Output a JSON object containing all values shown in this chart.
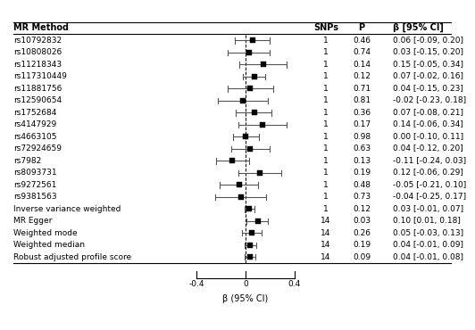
{
  "rows": [
    {
      "label": "rs10792832",
      "snps": "1",
      "p": "0.46",
      "beta": 0.06,
      "ci_lo": -0.09,
      "ci_hi": 0.2
    },
    {
      "label": "rs10808026",
      "snps": "1",
      "p": "0.74",
      "beta": 0.03,
      "ci_lo": -0.15,
      "ci_hi": 0.2
    },
    {
      "label": "rs11218343",
      "snps": "1",
      "p": "0.14",
      "beta": 0.15,
      "ci_lo": -0.05,
      "ci_hi": 0.34
    },
    {
      "label": "rs117310449",
      "snps": "1",
      "p": "0.12",
      "beta": 0.07,
      "ci_lo": -0.02,
      "ci_hi": 0.16
    },
    {
      "label": "rs11881756",
      "snps": "1",
      "p": "0.71",
      "beta": 0.04,
      "ci_lo": -0.15,
      "ci_hi": 0.23
    },
    {
      "label": "rs12590654",
      "snps": "1",
      "p": "0.81",
      "beta": -0.02,
      "ci_lo": -0.23,
      "ci_hi": 0.18
    },
    {
      "label": "rs1752684",
      "snps": "1",
      "p": "0.36",
      "beta": 0.07,
      "ci_lo": -0.08,
      "ci_hi": 0.21
    },
    {
      "label": "rs4147929",
      "snps": "1",
      "p": "0.17",
      "beta": 0.14,
      "ci_lo": -0.06,
      "ci_hi": 0.34
    },
    {
      "label": "rs4663105",
      "snps": "1",
      "p": "0.98",
      "beta": 0.0,
      "ci_lo": -0.1,
      "ci_hi": 0.11
    },
    {
      "label": "rs72924659",
      "snps": "1",
      "p": "0.63",
      "beta": 0.04,
      "ci_lo": -0.12,
      "ci_hi": 0.2
    },
    {
      "label": "rs7982",
      "snps": "1",
      "p": "0.13",
      "beta": -0.11,
      "ci_lo": -0.24,
      "ci_hi": 0.03
    },
    {
      "label": "rs8093731",
      "snps": "1",
      "p": "0.19",
      "beta": 0.12,
      "ci_lo": -0.06,
      "ci_hi": 0.29
    },
    {
      "label": "rs9272561",
      "snps": "1",
      "p": "0.48",
      "beta": -0.05,
      "ci_lo": -0.21,
      "ci_hi": 0.1
    },
    {
      "label": "rs9381563",
      "snps": "1",
      "p": "0.73",
      "beta": -0.04,
      "ci_lo": -0.25,
      "ci_hi": 0.17
    },
    {
      "label": "Inverse variance weighted",
      "snps": "1",
      "p": "0.12",
      "beta": 0.03,
      "ci_lo": -0.01,
      "ci_hi": 0.07
    },
    {
      "label": "MR Egger",
      "snps": "14",
      "p": "0.03",
      "beta": 0.1,
      "ci_lo": 0.01,
      "ci_hi": 0.18
    },
    {
      "label": "Weighted mode",
      "snps": "14",
      "p": "0.26",
      "beta": 0.05,
      "ci_lo": -0.03,
      "ci_hi": 0.13
    },
    {
      "label": "Weighted median",
      "snps": "14",
      "p": "0.19",
      "beta": 0.04,
      "ci_lo": -0.01,
      "ci_hi": 0.09
    },
    {
      "label": "Robust adjusted profile score",
      "snps": "14",
      "p": "0.09",
      "beta": 0.04,
      "ci_lo": -0.01,
      "ci_hi": 0.08
    }
  ],
  "col_headers": [
    "MR Method",
    "SNPs",
    "P",
    "β [95% CI]"
  ],
  "ci_strings": [
    "0.06 [-0.09, 0.20]",
    "0.03 [-0.15, 0.20]",
    "0.15 [-0.05, 0.34]",
    "0.07 [-0.02, 0.16]",
    "0.04 [-0.15, 0.23]",
    "-0.02 [-0.23, 0.18]",
    "0.07 [-0.08, 0.21]",
    "0.14 [-0.06, 0.34]",
    "0.00 [-0.10, 0.11]",
    "0.04 [-0.12, 0.20]",
    "-0.11 [-0.24, 0.03]",
    "0.12 [-0.06, 0.29]",
    "-0.05 [-0.21, 0.10]",
    "-0.04 [-0.25, 0.17]",
    "0.03 [-0.01, 0.07]",
    "0.10 [0.01, 0.18]",
    "0.05 [-0.03, 0.13]",
    "0.04 [-0.01, 0.09]",
    "0.04 [-0.01, 0.08]"
  ],
  "xlabel": "β (95% CI)",
  "x_ticks": [
    -0.4,
    0.0,
    0.4
  ],
  "x_tick_labels": [
    "-0.4",
    "0",
    "0.4"
  ],
  "plot_xlim": [
    -0.55,
    0.55
  ],
  "fontsize": 6.5,
  "header_fontsize": 7.0,
  "marker_size": 4,
  "cap_size": 0.08,
  "linewidth": 0.8,
  "bg_color": "#ffffff",
  "fg_color": "#000000",
  "ci_line_color": "#555555"
}
